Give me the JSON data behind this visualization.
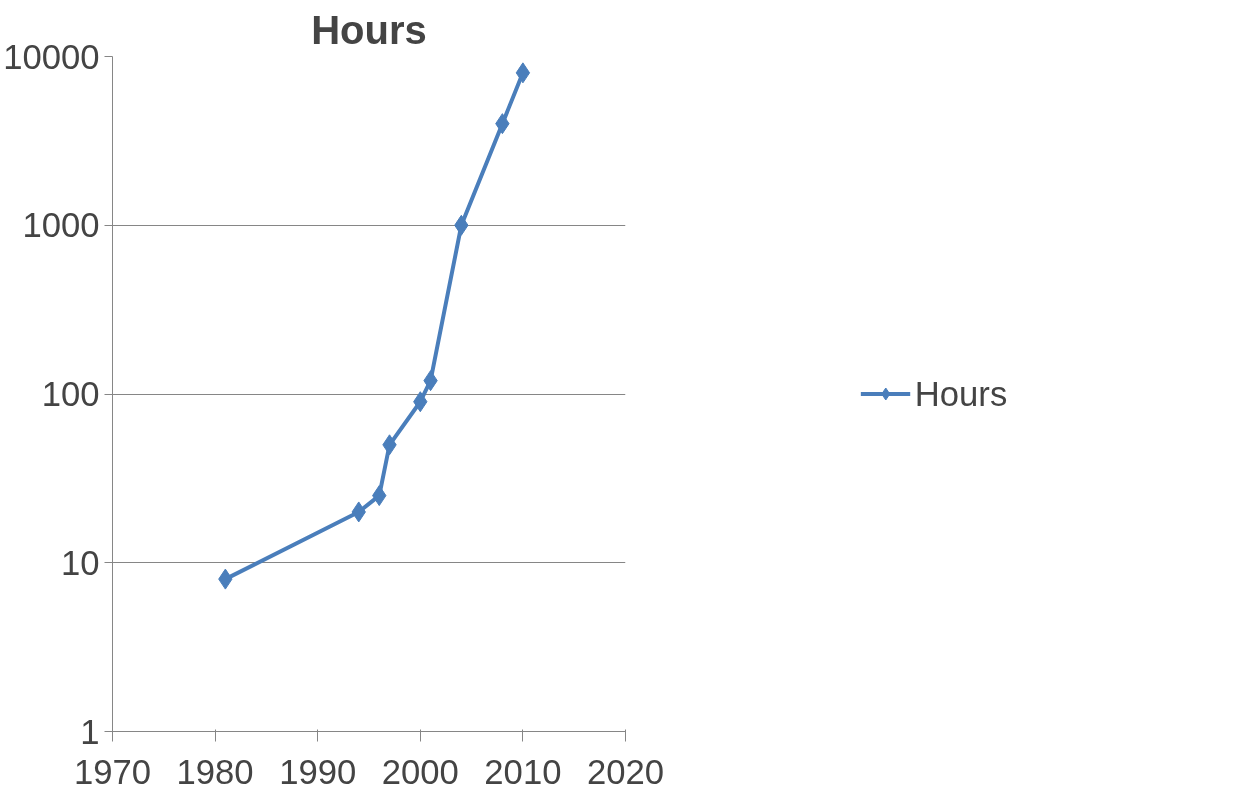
{
  "chart_data": {
    "type": "line",
    "title": "Hours",
    "x": [
      1981,
      1994,
      1996,
      1997,
      2000,
      2001,
      2004,
      2008,
      2010
    ],
    "series": [
      {
        "name": "Hours",
        "color": "#4a7ebb",
        "values": [
          8,
          20,
          25,
          50,
          90,
          120,
          1000,
          4000,
          8000
        ]
      }
    ],
    "xlim": [
      1970,
      2020
    ],
    "xticks": [
      1970,
      1980,
      1990,
      2000,
      2010,
      2020
    ],
    "ylim": [
      1,
      10000
    ],
    "yticks": [
      1,
      10,
      100,
      1000,
      10000
    ],
    "log": "y",
    "grid": "y",
    "legend": "right",
    "marker": "diamond",
    "line_style": "solid"
  }
}
